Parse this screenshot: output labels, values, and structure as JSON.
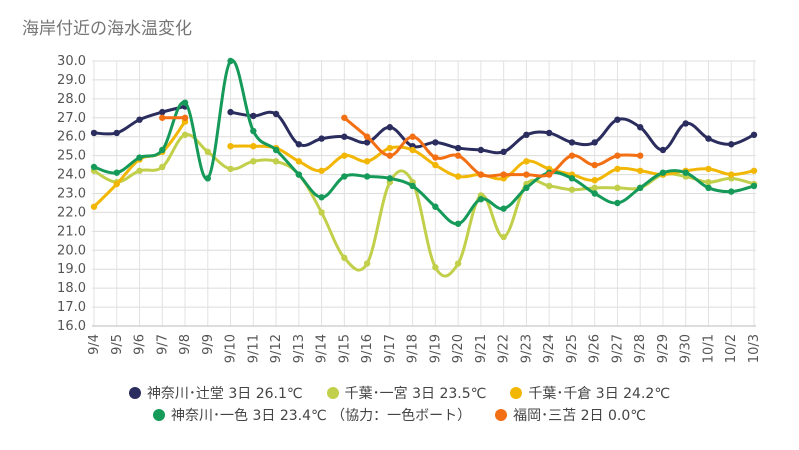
{
  "title": "海岸付近の海水温変化",
  "chart_data": {
    "type": "line",
    "title": "海岸付近の海水温変化",
    "categories": [
      "9/4",
      "9/5",
      "9/6",
      "9/7",
      "9/8",
      "9/9",
      "9/10",
      "9/11",
      "9/12",
      "9/13",
      "9/14",
      "9/15",
      "9/16",
      "9/17",
      "9/18",
      "9/19",
      "9/20",
      "9/21",
      "9/22",
      "9/23",
      "9/24",
      "9/25",
      "9/26",
      "9/27",
      "9/28",
      "9/29",
      "9/30",
      "10/1",
      "10/2",
      "10/3"
    ],
    "ylim": [
      16.0,
      30.0
    ],
    "yticks": [
      "16.0",
      "17.0",
      "18.0",
      "19.0",
      "20.0",
      "21.0",
      "22.0",
      "23.0",
      "24.0",
      "25.0",
      "26.0",
      "27.0",
      "28.0",
      "29.0",
      "30.0"
    ],
    "grid": true,
    "legend_position": "bottom",
    "series": [
      {
        "name": "神奈川･辻堂 3日 26.1℃",
        "color": "#2b2d5e",
        "values": [
          26.2,
          26.2,
          26.9,
          27.3,
          27.6,
          null,
          27.3,
          27.1,
          27.2,
          25.6,
          25.9,
          26.0,
          25.7,
          26.5,
          25.5,
          25.7,
          25.4,
          25.3,
          25.2,
          26.1,
          26.2,
          25.7,
          25.7,
          26.9,
          26.5,
          25.3,
          26.7,
          25.9,
          25.6,
          26.1
        ]
      },
      {
        "name": "千葉･一宮 3日 23.5℃",
        "color": "#c2cf4a",
        "values": [
          24.2,
          23.6,
          24.2,
          24.4,
          26.1,
          25.2,
          24.3,
          24.7,
          24.7,
          24.0,
          22.0,
          19.6,
          19.3,
          23.6,
          23.6,
          19.1,
          19.3,
          22.9,
          20.7,
          23.5,
          23.4,
          23.2,
          23.3,
          23.3,
          23.3,
          24.0,
          23.9,
          23.6,
          23.8,
          23.5
        ]
      },
      {
        "name": "千葉･千倉 3日 24.2℃",
        "color": "#f2b705",
        "values": [
          22.3,
          23.5,
          24.8,
          25.2,
          26.8,
          null,
          25.5,
          25.5,
          25.4,
          24.7,
          24.2,
          25.0,
          24.7,
          25.4,
          25.3,
          24.5,
          23.9,
          24.0,
          23.8,
          24.7,
          24.3,
          24.0,
          23.7,
          24.3,
          24.2,
          24.0,
          24.2,
          24.3,
          24.0,
          24.2
        ]
      },
      {
        "name": "神奈川･一色 3日 23.4℃ （協力：一色ボート）",
        "color": "#169a5a",
        "values": [
          24.4,
          24.1,
          24.9,
          25.3,
          27.8,
          23.8,
          30.0,
          26.3,
          25.3,
          24.0,
          22.8,
          23.9,
          23.9,
          23.8,
          23.4,
          22.3,
          21.4,
          22.7,
          22.2,
          23.3,
          24.1,
          23.8,
          23.0,
          22.5,
          23.3,
          24.1,
          24.1,
          23.3,
          23.1,
          23.4
        ]
      },
      {
        "name": "福岡･三苫 2日 0.0℃",
        "color": "#f36f13",
        "values": [
          null,
          null,
          null,
          27.0,
          27.0,
          null,
          null,
          null,
          null,
          null,
          null,
          27.0,
          26.0,
          25.0,
          26.0,
          24.9,
          25.0,
          24.0,
          24.0,
          24.0,
          24.0,
          25.0,
          24.5,
          25.0,
          25.0,
          null,
          null,
          null,
          null,
          null
        ]
      }
    ]
  }
}
